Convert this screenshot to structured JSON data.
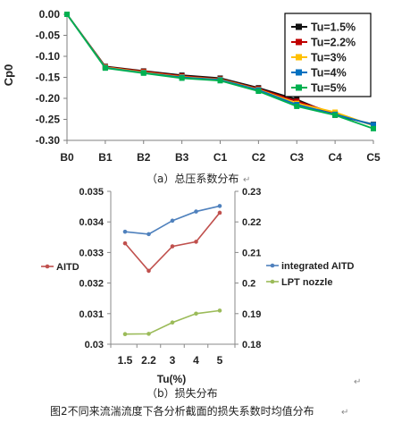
{
  "colors": {
    "tu15": "#111111",
    "tu22": "#c00000",
    "tu3": "#ffc000",
    "tu4": "#0070c0",
    "tu5": "#00b050",
    "aitd": "#c0504d",
    "integrated": "#4f81bd",
    "lpt": "#9bbb59"
  },
  "chart_data": [
    {
      "type": "line",
      "ylabel": "Cp0",
      "categories": [
        "B0",
        "B1",
        "B2",
        "B3",
        "C1",
        "C2",
        "C3",
        "C4",
        "C5"
      ],
      "ylim": [
        -0.3,
        0.0
      ],
      "yticks": [
        "0.00",
        "-0.05",
        "-0.10",
        "-0.15",
        "-0.20",
        "-0.25",
        "-0.30"
      ],
      "legend_position": "top-right",
      "series": [
        {
          "name": "Tu=1.5%",
          "color_key": "tu15",
          "values": [
            0.0,
            -0.124,
            -0.135,
            -0.145,
            -0.152,
            -0.175,
            -0.203,
            -0.24,
            -0.262
          ]
        },
        {
          "name": "Tu=2.2%",
          "color_key": "tu22",
          "values": [
            0.0,
            -0.125,
            -0.136,
            -0.147,
            -0.154,
            -0.177,
            -0.207,
            -0.236,
            -0.264
          ]
        },
        {
          "name": "Tu=3%",
          "color_key": "tu3",
          "values": [
            0.0,
            -0.126,
            -0.138,
            -0.149,
            -0.155,
            -0.179,
            -0.212,
            -0.233,
            -0.265
          ]
        },
        {
          "name": "Tu=4%",
          "color_key": "tu4",
          "values": [
            0.0,
            -0.127,
            -0.139,
            -0.15,
            -0.156,
            -0.18,
            -0.215,
            -0.238,
            -0.263
          ]
        },
        {
          "name": "Tu=5%",
          "color_key": "tu5",
          "values": [
            0.0,
            -0.128,
            -0.14,
            -0.152,
            -0.158,
            -0.183,
            -0.219,
            -0.24,
            -0.272
          ]
        }
      ],
      "caption": "（a）总压系数分布"
    },
    {
      "type": "line",
      "xlabel": "Tu(%)",
      "categories": [
        "1.5",
        "2.2",
        "3",
        "4",
        "5"
      ],
      "left_axis": {
        "ylim": [
          0.03,
          0.035
        ],
        "yticks": [
          "0.035",
          "0.034",
          "0.033",
          "0.032",
          "0.031",
          "0.03"
        ]
      },
      "right_axis": {
        "ylim": [
          0.18,
          0.23
        ],
        "yticks": [
          "0.23",
          "0.22",
          "0.21",
          "0.2",
          "0.19",
          "0.18"
        ]
      },
      "series": [
        {
          "name": "AITD",
          "axis": "left",
          "color_key": "aitd",
          "values": [
            0.0333,
            0.0324,
            0.0332,
            0.03335,
            0.0343
          ]
        },
        {
          "name": "integrated AITD",
          "axis": "right",
          "color_key": "integrated",
          "values": [
            0.2168,
            0.216,
            0.2204,
            0.2234,
            0.2252
          ]
        },
        {
          "name": "LPT nozzle",
          "axis": "right",
          "color_key": "lpt",
          "values": [
            0.1833,
            0.1834,
            0.1871,
            0.19,
            0.191
          ]
        }
      ],
      "caption": "（b）损失分布"
    }
  ],
  "figure_caption": "图2不同来流湍流度下各分析截面的损失系数时均值分布"
}
